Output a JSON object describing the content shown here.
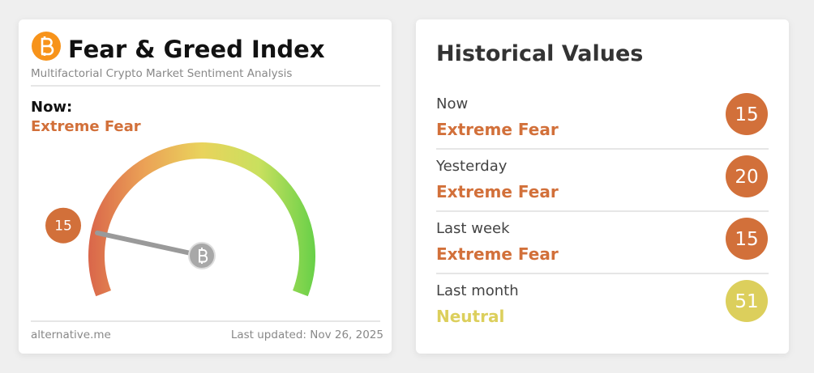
{
  "gauge_card": {
    "title": "Fear & Greed Index",
    "subtitle": "Multifactorial Crypto Market Sentiment Analysis",
    "now_label": "Now:",
    "classification": "Extreme Fear",
    "color": "#d2703a",
    "value": 15,
    "range": [
      0,
      100
    ],
    "source": "alternative.me",
    "last_updated": "Last updated: Nov 26, 2025"
  },
  "history": {
    "title": "Historical Values",
    "rows": [
      {
        "label": "Now",
        "classification": "Extreme Fear",
        "value": 15,
        "color": "#d2703a"
      },
      {
        "label": "Yesterday",
        "classification": "Extreme Fear",
        "value": 20,
        "color": "#d2703a"
      },
      {
        "label": "Last week",
        "classification": "Extreme Fear",
        "value": 15,
        "color": "#d2703a"
      },
      {
        "label": "Last month",
        "classification": "Neutral",
        "value": 51,
        "color": "#dccf5c"
      }
    ]
  }
}
